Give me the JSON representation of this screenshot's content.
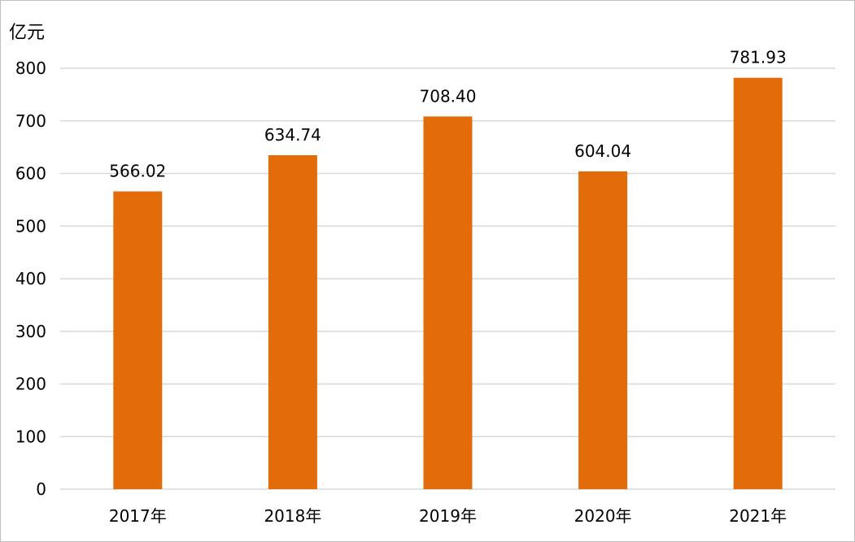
{
  "chart_data": {
    "type": "bar",
    "unit_label": "亿元",
    "categories": [
      "2017年",
      "2018年",
      "2019年",
      "2020年",
      "2021年"
    ],
    "values": [
      566.02,
      634.74,
      708.4,
      604.04,
      781.93
    ],
    "value_labels": [
      "566.02",
      "634.74",
      "708.40",
      "604.04",
      "781.93"
    ],
    "yticks": [
      "0",
      "100",
      "200",
      "300",
      "400",
      "500",
      "600",
      "700",
      "800"
    ],
    "ylim": [
      0,
      800
    ],
    "grid": true,
    "legend": "none",
    "bar_color": "#E36C0A",
    "grid_color": "#D9D9D9"
  }
}
